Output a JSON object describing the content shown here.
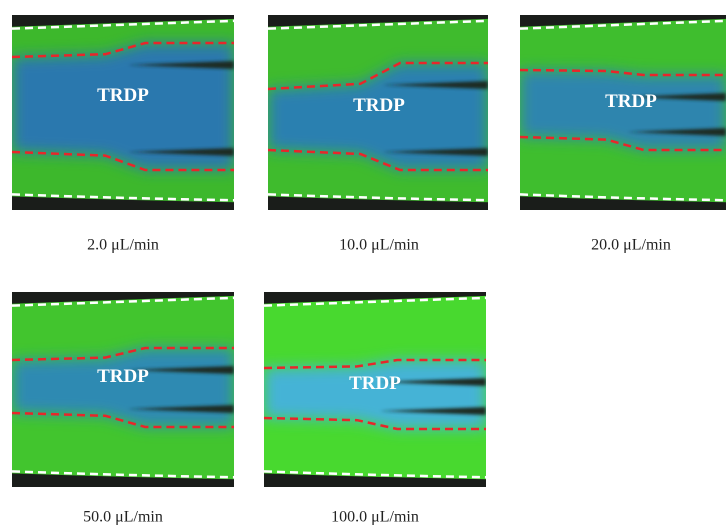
{
  "panels": [
    {
      "label": "TRDP",
      "caption": "2.0 μL/min"
    },
    {
      "label": "TRDP",
      "caption": "10.0 μL/min"
    },
    {
      "label": "TRDP",
      "caption": "20.0 μL/min"
    },
    {
      "label": "TRDP",
      "caption": "50.0 μL/min"
    },
    {
      "label": "TRDP",
      "caption": "100.0 μL/min"
    }
  ]
}
